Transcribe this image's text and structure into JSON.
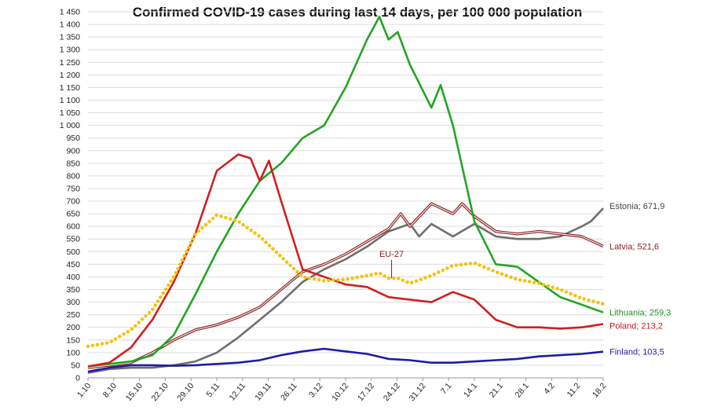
{
  "chart_data": {
    "type": "line",
    "title": "Confirmed COVID-19 cases during last 14 days, per 100 000 population",
    "xlabel": "",
    "ylabel": "",
    "ylim": [
      0,
      1450
    ],
    "y_ticks": [
      0,
      50,
      100,
      150,
      200,
      250,
      300,
      350,
      400,
      450,
      500,
      550,
      600,
      650,
      700,
      750,
      800,
      850,
      900,
      950,
      1000,
      1050,
      1100,
      1150,
      1200,
      1250,
      1300,
      1350,
      1400,
      1450
    ],
    "y_tick_labels": [
      "0",
      "50",
      "100",
      "150",
      "200",
      "250",
      "300",
      "350",
      "400",
      "450",
      "500",
      "550",
      "600",
      "650",
      "700",
      "750",
      "800",
      "850",
      "900",
      "950",
      "1 000",
      "1 050",
      "1 100",
      "1 150",
      "1 200",
      "1 250",
      "1 300",
      "1 350",
      "1 400",
      "1 450"
    ],
    "x_tick_labels": [
      "1.10",
      "8.10",
      "15.10",
      "22.10",
      "29.10",
      "5.11",
      "12.11",
      "19.11",
      "26.11",
      "3.12",
      "10.12",
      "17.12",
      "24.12",
      "31.12",
      "7.1",
      "14.1",
      "21.1",
      "28.1",
      "4.2",
      "11.2",
      "18.2"
    ],
    "grid": true,
    "legend": "inline labels at right end of each line",
    "series": [
      {
        "name": "Estonia; 671,9",
        "color": "#6e6e6e",
        "style": "solid",
        "points": [
          [
            0,
            20
          ],
          [
            7,
            35
          ],
          [
            14,
            40
          ],
          [
            21,
            40
          ],
          [
            28,
            50
          ],
          [
            35,
            65
          ],
          [
            42,
            100
          ],
          [
            49,
            160
          ],
          [
            56,
            230
          ],
          [
            63,
            300
          ],
          [
            70,
            380
          ],
          [
            77,
            430
          ],
          [
            84,
            470
          ],
          [
            91,
            520
          ],
          [
            98,
            580
          ],
          [
            105,
            610
          ],
          [
            108,
            560
          ],
          [
            112,
            610
          ],
          [
            119,
            560
          ],
          [
            126,
            610
          ],
          [
            133,
            560
          ],
          [
            140,
            550
          ],
          [
            147,
            550
          ],
          [
            154,
            560
          ],
          [
            161,
            600
          ],
          [
            164,
            620
          ],
          [
            168,
            671.9
          ]
        ]
      },
      {
        "name": "Latvia; 521,6",
        "color": "#8b1a1a",
        "style": "double",
        "points": [
          [
            0,
            40
          ],
          [
            7,
            50
          ],
          [
            14,
            60
          ],
          [
            21,
            100
          ],
          [
            28,
            150
          ],
          [
            35,
            190
          ],
          [
            42,
            210
          ],
          [
            49,
            240
          ],
          [
            56,
            280
          ],
          [
            63,
            350
          ],
          [
            70,
            420
          ],
          [
            77,
            450
          ],
          [
            84,
            490
          ],
          [
            91,
            540
          ],
          [
            98,
            590
          ],
          [
            102,
            650
          ],
          [
            105,
            600
          ],
          [
            112,
            690
          ],
          [
            119,
            650
          ],
          [
            122,
            690
          ],
          [
            126,
            640
          ],
          [
            133,
            580
          ],
          [
            140,
            570
          ],
          [
            147,
            580
          ],
          [
            154,
            570
          ],
          [
            161,
            560
          ],
          [
            168,
            521.6
          ]
        ]
      },
      {
        "name": "Lithuania; 259,3",
        "color": "#22a522",
        "style": "solid",
        "points": [
          [
            0,
            45
          ],
          [
            7,
            55
          ],
          [
            14,
            65
          ],
          [
            21,
            90
          ],
          [
            28,
            170
          ],
          [
            35,
            330
          ],
          [
            42,
            500
          ],
          [
            49,
            650
          ],
          [
            56,
            780
          ],
          [
            63,
            850
          ],
          [
            70,
            950
          ],
          [
            77,
            1000
          ],
          [
            84,
            1150
          ],
          [
            91,
            1340
          ],
          [
            95,
            1430
          ],
          [
            98,
            1340
          ],
          [
            101,
            1370
          ],
          [
            105,
            1240
          ],
          [
            112,
            1070
          ],
          [
            115,
            1160
          ],
          [
            119,
            1000
          ],
          [
            126,
            620
          ],
          [
            133,
            450
          ],
          [
            140,
            440
          ],
          [
            147,
            380
          ],
          [
            154,
            320
          ],
          [
            161,
            290
          ],
          [
            168,
            259.3
          ]
        ]
      },
      {
        "name": "Poland; 213,2",
        "color": "#d01f1f",
        "style": "solid",
        "points": [
          [
            0,
            45
          ],
          [
            7,
            60
          ],
          [
            14,
            120
          ],
          [
            21,
            230
          ],
          [
            28,
            380
          ],
          [
            35,
            570
          ],
          [
            42,
            820
          ],
          [
            49,
            885
          ],
          [
            53,
            870
          ],
          [
            56,
            780
          ],
          [
            59,
            860
          ],
          [
            63,
            700
          ],
          [
            70,
            430
          ],
          [
            77,
            400
          ],
          [
            84,
            370
          ],
          [
            91,
            360
          ],
          [
            98,
            320
          ],
          [
            105,
            310
          ],
          [
            112,
            300
          ],
          [
            119,
            340
          ],
          [
            126,
            310
          ],
          [
            133,
            230
          ],
          [
            140,
            200
          ],
          [
            147,
            200
          ],
          [
            154,
            195
          ],
          [
            161,
            200
          ],
          [
            168,
            213.2
          ]
        ]
      },
      {
        "name": "EU-27",
        "color": "#f2c314",
        "style": "dotted",
        "points": [
          [
            0,
            125
          ],
          [
            7,
            140
          ],
          [
            14,
            190
          ],
          [
            21,
            270
          ],
          [
            28,
            400
          ],
          [
            35,
            570
          ],
          [
            42,
            645
          ],
          [
            49,
            620
          ],
          [
            56,
            560
          ],
          [
            63,
            480
          ],
          [
            70,
            400
          ],
          [
            77,
            385
          ],
          [
            84,
            390
          ],
          [
            91,
            405
          ],
          [
            95,
            415
          ],
          [
            98,
            395
          ],
          [
            101,
            395
          ],
          [
            105,
            375
          ],
          [
            112,
            405
          ],
          [
            119,
            445
          ],
          [
            126,
            455
          ],
          [
            133,
            420
          ],
          [
            140,
            390
          ],
          [
            147,
            375
          ],
          [
            154,
            350
          ],
          [
            161,
            315
          ],
          [
            168,
            293
          ]
        ]
      },
      {
        "name": "Finland; 103,5",
        "color": "#1c1ca8",
        "style": "solid",
        "points": [
          [
            0,
            25
          ],
          [
            7,
            40
          ],
          [
            14,
            50
          ],
          [
            21,
            50
          ],
          [
            28,
            48
          ],
          [
            35,
            50
          ],
          [
            42,
            55
          ],
          [
            49,
            60
          ],
          [
            56,
            70
          ],
          [
            63,
            90
          ],
          [
            70,
            105
          ],
          [
            77,
            115
          ],
          [
            84,
            105
          ],
          [
            91,
            95
          ],
          [
            98,
            75
          ],
          [
            105,
            70
          ],
          [
            112,
            60
          ],
          [
            119,
            60
          ],
          [
            126,
            65
          ],
          [
            133,
            70
          ],
          [
            140,
            75
          ],
          [
            147,
            85
          ],
          [
            154,
            90
          ],
          [
            161,
            95
          ],
          [
            168,
            103.5
          ]
        ]
      }
    ],
    "annotations": [
      {
        "text": "EU-27",
        "x": 99,
        "y": 455
      }
    ]
  }
}
